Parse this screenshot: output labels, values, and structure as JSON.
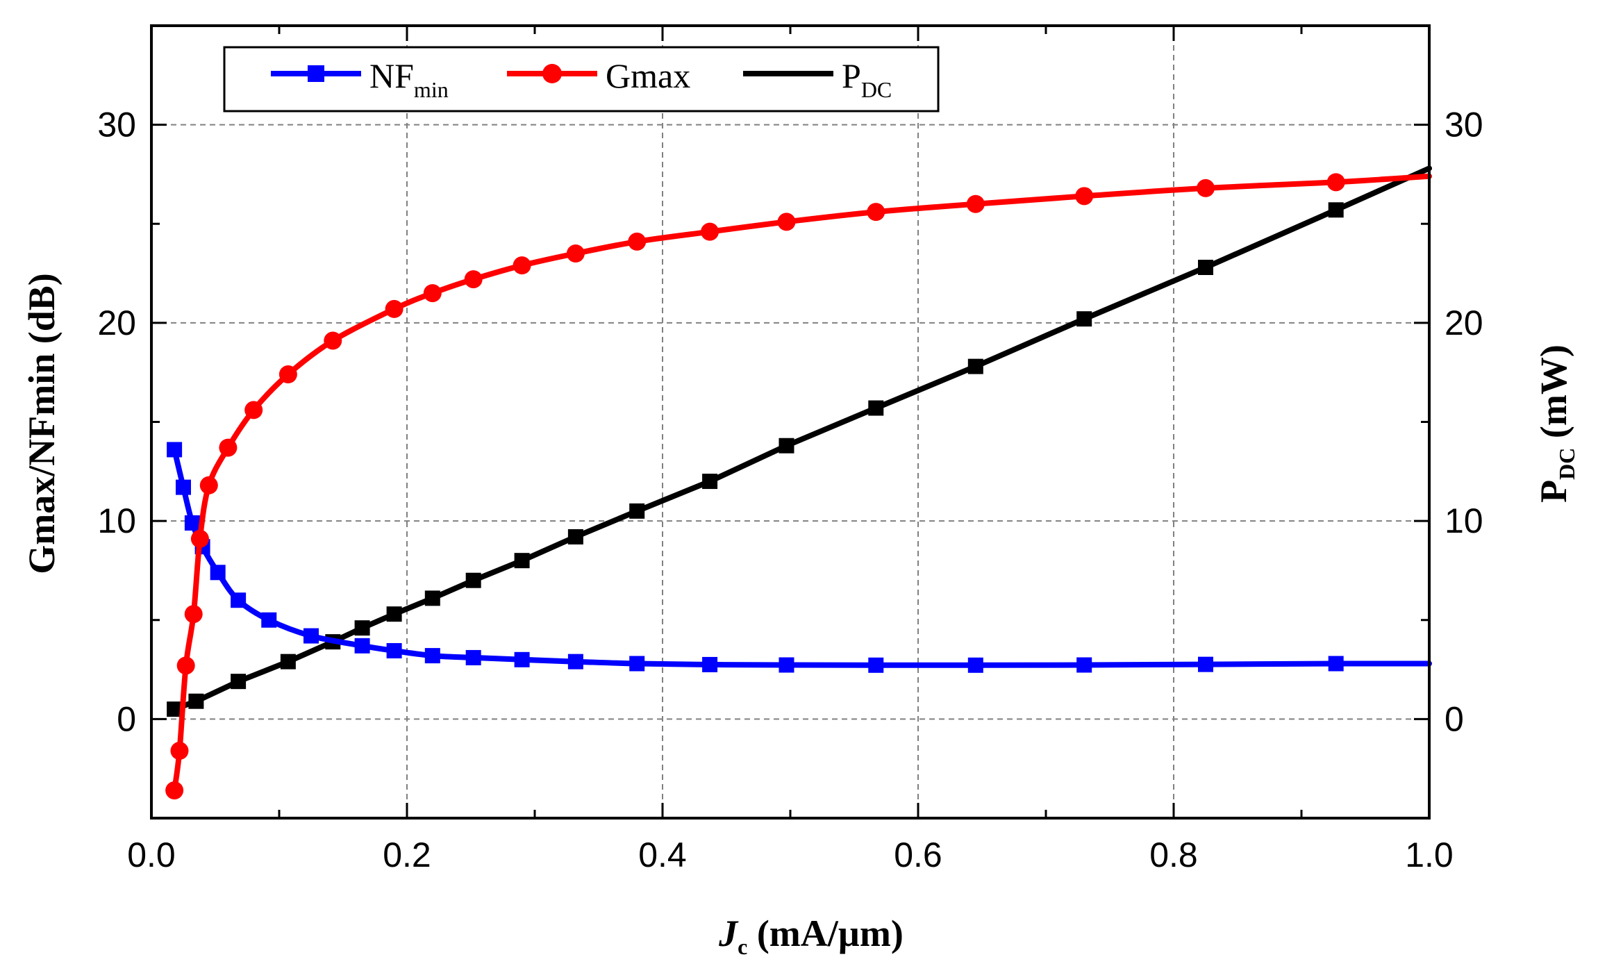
{
  "chart_data": {
    "type": "line",
    "x_axis": {
      "label_main": "J",
      "label_sub": "c",
      "label_unit": " (mA/µm)",
      "range": [
        0.0,
        1.0
      ],
      "ticks": [
        0.0,
        0.2,
        0.4,
        0.6,
        0.8,
        1.0
      ],
      "tick_labels": [
        "0.0",
        "0.2",
        "0.4",
        "0.6",
        "0.8",
        "1.0"
      ]
    },
    "y_left": {
      "label": "Gmax/NFmin (dB)",
      "range": [
        -5,
        35
      ],
      "ticks": [
        0,
        10,
        20,
        30
      ],
      "tick_labels": [
        "0",
        "10",
        "20",
        "30"
      ]
    },
    "y_right": {
      "label_main": "P",
      "label_sub": "DC",
      "label_unit": " (mW)",
      "range": [
        -5,
        35
      ],
      "ticks": [
        0,
        10,
        20,
        30
      ],
      "tick_labels": [
        "0",
        "10",
        "20",
        "30"
      ]
    },
    "grid": true,
    "legend_position": "top-left",
    "series": [
      {
        "name": "NFmin",
        "legend_main": "NF",
        "legend_sub": "min",
        "color": "#0000ff",
        "marker": "square",
        "axis": "left",
        "x": [
          0.018,
          0.025,
          0.032,
          0.04,
          0.052,
          0.068,
          0.092,
          0.125,
          0.165,
          0.19,
          0.22,
          0.252,
          0.29,
          0.332,
          0.38,
          0.437,
          0.497,
          0.567,
          0.645,
          0.73,
          0.825,
          0.927
        ],
        "values": [
          13.6,
          11.7,
          9.9,
          8.7,
          7.4,
          6.0,
          5.0,
          4.2,
          3.7,
          3.45,
          3.2,
          3.1,
          3.0,
          2.9,
          2.8,
          2.75,
          2.73,
          2.72,
          2.72,
          2.73,
          2.76,
          2.8
        ]
      },
      {
        "name": "Gmax",
        "legend_main": "Gmax",
        "legend_sub": "",
        "color": "#ff0000",
        "marker": "circle",
        "axis": "left",
        "x": [
          0.018,
          0.022,
          0.027,
          0.033,
          0.038,
          0.045,
          0.06,
          0.08,
          0.107,
          0.142,
          0.19,
          0.22,
          0.252,
          0.29,
          0.332,
          0.38,
          0.437,
          0.497,
          0.567,
          0.645,
          0.73,
          0.825,
          0.927
        ],
        "values": [
          -3.6,
          -1.6,
          2.7,
          5.3,
          9.1,
          11.8,
          13.7,
          15.6,
          17.4,
          19.1,
          20.7,
          21.5,
          22.2,
          22.9,
          23.5,
          24.1,
          24.6,
          25.1,
          25.6,
          26.0,
          26.4,
          26.8,
          27.1
        ]
      },
      {
        "name": "PDC",
        "legend_main": "P",
        "legend_sub": "DC",
        "color": "#000000",
        "marker": "square",
        "axis": "right",
        "x": [
          0.018,
          0.035,
          0.068,
          0.107,
          0.142,
          0.165,
          0.19,
          0.22,
          0.252,
          0.29,
          0.332,
          0.38,
          0.437,
          0.497,
          0.567,
          0.645,
          0.73,
          0.825,
          0.927
        ],
        "values": [
          0.5,
          0.9,
          1.9,
          2.9,
          3.9,
          4.6,
          5.3,
          6.1,
          7.0,
          8.0,
          9.2,
          10.5,
          12.0,
          13.8,
          15.7,
          17.8,
          20.2,
          22.8,
          25.7
        ]
      }
    ]
  }
}
